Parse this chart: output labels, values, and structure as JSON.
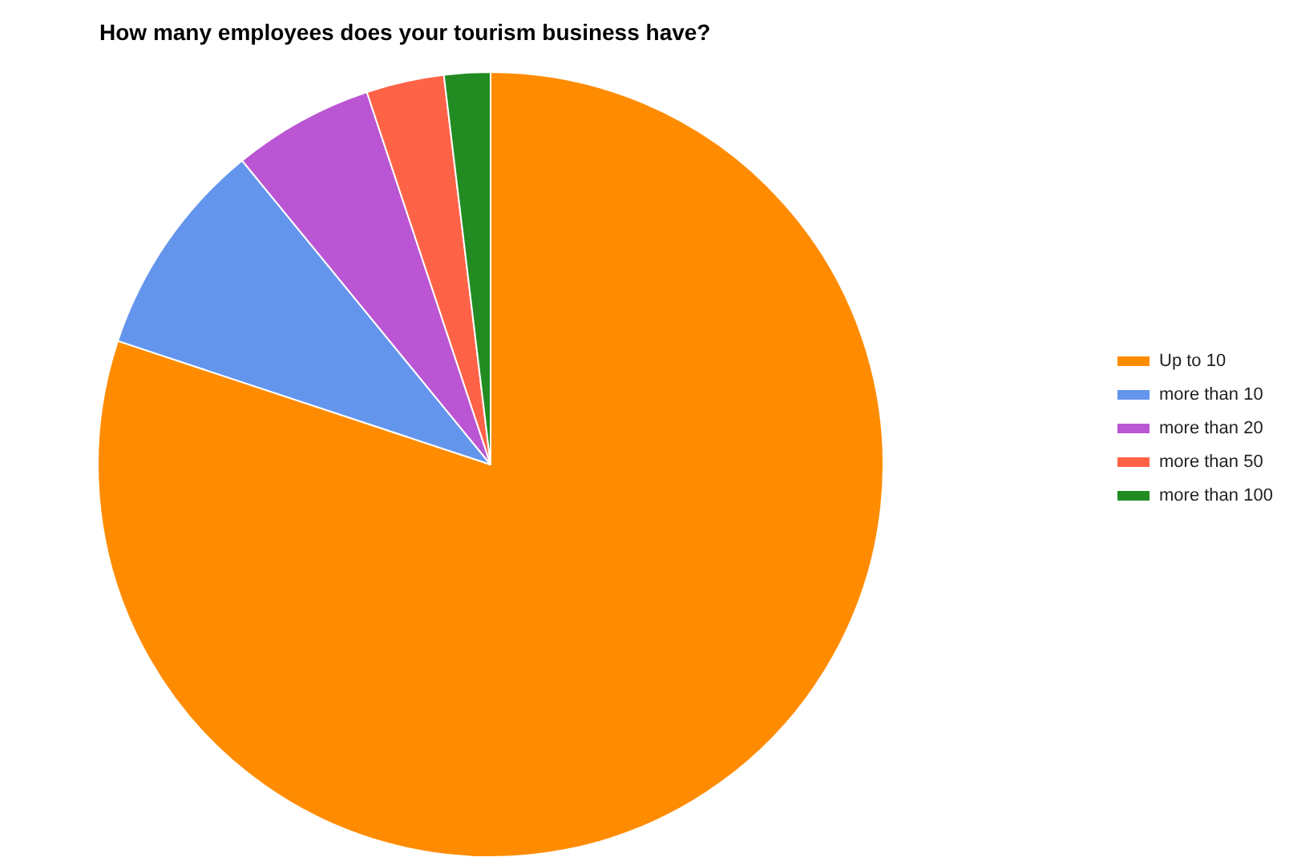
{
  "chart_data": {
    "type": "pie",
    "title": "How many employees does your tourism business have?",
    "categories": [
      "Up to 10",
      "more than 10",
      "more than 20",
      "more than 50",
      "more than 100"
    ],
    "values": [
      80.1,
      9.0,
      5.8,
      3.2,
      1.9
    ],
    "colors": [
      "#ff8c00",
      "#6495ed",
      "#ba55d3",
      "#ff6347",
      "#228b22"
    ],
    "legend": "right"
  }
}
